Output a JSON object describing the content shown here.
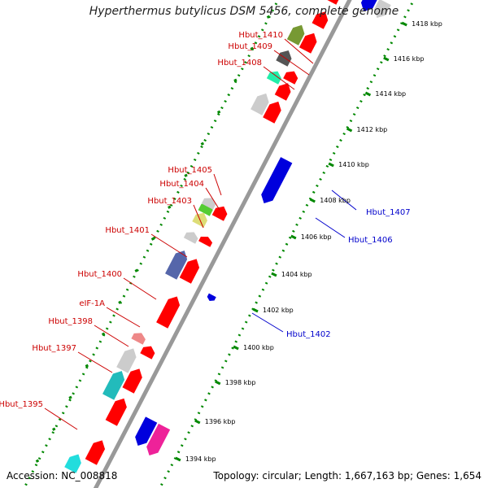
{
  "title": "Hyperthermus butylicus DSM 5456, complete genome",
  "accession": "Accession: NC_008818",
  "summary": "Topology: circular; Length: 1,667,163 bp; Genes: 1,654",
  "colors": {
    "forward": "#ff0000",
    "reverse": "#0000dd",
    "label_forward": "#cc0000",
    "label_reverse": "#0000cc",
    "backbone": "#999999",
    "ticks": "#008800"
  },
  "kbp_ticks": [
    "1394 kbp",
    "1396 kbp",
    "1398 kbp",
    "1400 kbp",
    "1402 kbp",
    "1404 kbp",
    "1406 kbp",
    "1408 kbp",
    "1410 kbp",
    "1412 kbp",
    "1414 kbp",
    "1416 kbp",
    "1418 kbp"
  ],
  "forward_gene_labels": [
    "Hbut_1410",
    "Hbut_1409",
    "Hbut_1408",
    "Hbut_1405",
    "Hbut_1404",
    "Hbut_1403",
    "Hbut_1401",
    "Hbut_1400",
    "eIF-1A",
    "Hbut_1398",
    "Hbut_1397",
    "Hbut_1395"
  ],
  "reverse_gene_labels": [
    "Hbut_1407",
    "Hbut_1406",
    "Hbut_1402"
  ]
}
